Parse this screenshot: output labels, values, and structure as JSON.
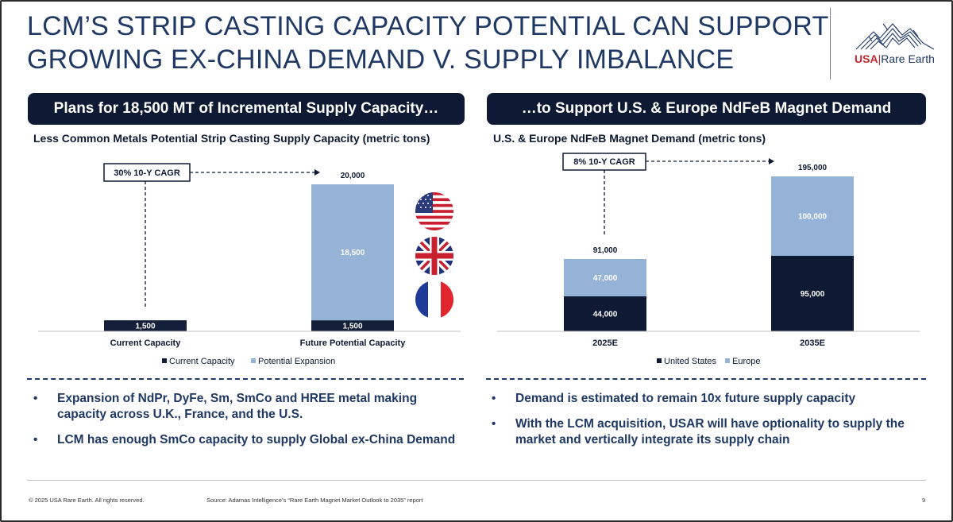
{
  "slide": {
    "title_line1": "LCM’S STRIP CASTING CAPACITY POTENTIAL CAN SUPPORT",
    "title_line2": "GROWING EX-CHINA DEMAND V. SUPPLY IMBALANCE",
    "logo": {
      "usa": "USA",
      "separator": "|",
      "rest": "Rare Earth"
    },
    "left_header": "Plans for 18,500 MT of Incremental Supply Capacity…",
    "right_header": "…to Support U.S. & Europe NdFeB Magnet Demand",
    "left_bullets": [
      "Expansion of NdPr, DyFe, Sm, SmCo and HREE metal making capacity across U.K., France, and the U.S.",
      "LCM has enough SmCo capacity to supply Global ex-China Demand"
    ],
    "right_bullets": [
      "Demand is estimated to remain 10x future supply capacity",
      "With the LCM acquisition, USAR will have optionality to supply the market and vertically integrate its supply chain"
    ],
    "footer_copyright": "© 2025 USA Rare Earth. All rights reserved.",
    "footer_source": "Source: Adamas Intelligence’s “Rare Earth Magnet Market Outlook to 2035” report",
    "page_number": "9",
    "flags": [
      "us-flag-icon",
      "uk-flag-icon",
      "france-flag-icon"
    ]
  },
  "chart_data": [
    {
      "type": "bar",
      "stacked": true,
      "title": "Less Common Metals Potential Strip Casting Supply Capacity (metric tons)",
      "categories": [
        "Current Capacity",
        "Future Potential Capacity"
      ],
      "series": [
        {
          "name": "Current Capacity",
          "values": [
            1500,
            1500
          ],
          "color": "#141f3a",
          "labels": [
            "1,500",
            "1,500"
          ]
        },
        {
          "name": "Potential Expansion",
          "values": [
            0,
            18500
          ],
          "color": "#95b3d7",
          "labels": [
            "",
            "18,500"
          ]
        }
      ],
      "totals": [
        null,
        "20,000"
      ],
      "ylim": [
        0,
        20000
      ],
      "annotation": "30% 10-Y CAGR",
      "legend": "bottom",
      "grid": false
    },
    {
      "type": "bar",
      "stacked": true,
      "title": "U.S. & Europe NdFeB Magnet Demand (metric tons)",
      "categories": [
        "2025E",
        "2035E"
      ],
      "series": [
        {
          "name": "United States",
          "values": [
            44000,
            95000
          ],
          "color": "#0e1a33",
          "labels": [
            "44,000",
            "95,000"
          ]
        },
        {
          "name": "Europe",
          "values": [
            47000,
            100000
          ],
          "color": "#95b3d7",
          "labels": [
            "47,000",
            "100,000"
          ]
        }
      ],
      "totals": [
        "91,000",
        "195,000"
      ],
      "ylim": [
        0,
        195000
      ],
      "annotation": "8% 10-Y CAGR",
      "legend": "bottom",
      "grid": false
    }
  ]
}
